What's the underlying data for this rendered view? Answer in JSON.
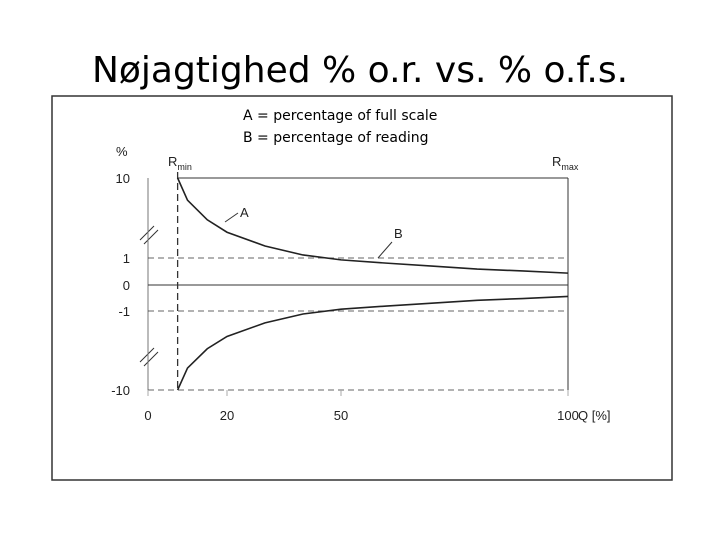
{
  "chart_data": {
    "type": "line",
    "title": "Nøjagtighed % o.r. vs. % o.f.s.",
    "notes": [
      "A = percentage of full scale",
      "B = percentage of reading"
    ],
    "ylabel": "%",
    "xlabel": "Q [%]",
    "annotations": [
      {
        "text": "R",
        "subscript": "min"
      },
      {
        "text": "R",
        "subscript": "max"
      },
      {
        "text": "A"
      },
      {
        "text": "B"
      }
    ],
    "x": [
      7.5,
      10,
      15,
      20,
      30,
      40,
      50,
      60,
      70,
      80,
      90,
      100
    ],
    "series": [
      {
        "name": "A",
        "color": "#222222",
        "values": [
          10,
          7.5,
          5.3,
          3.9,
          2.35,
          1.34,
          0.93,
          0.81,
          0.7,
          0.59,
          0.52,
          0.44
        ]
      },
      {
        "color": "#222222",
        "values": [
          -10,
          -7.5,
          -5.3,
          -3.9,
          -2.35,
          -1.34,
          -0.93,
          -0.81,
          -0.7,
          -0.59,
          -0.52,
          -0.44
        ]
      }
    ],
    "xlim": [
      0,
      100
    ],
    "xticks": [
      0,
      20,
      50,
      100
    ],
    "ylim": [
      -10,
      10
    ],
    "yticks": [
      10,
      1,
      0,
      -1,
      -10
    ]
  }
}
